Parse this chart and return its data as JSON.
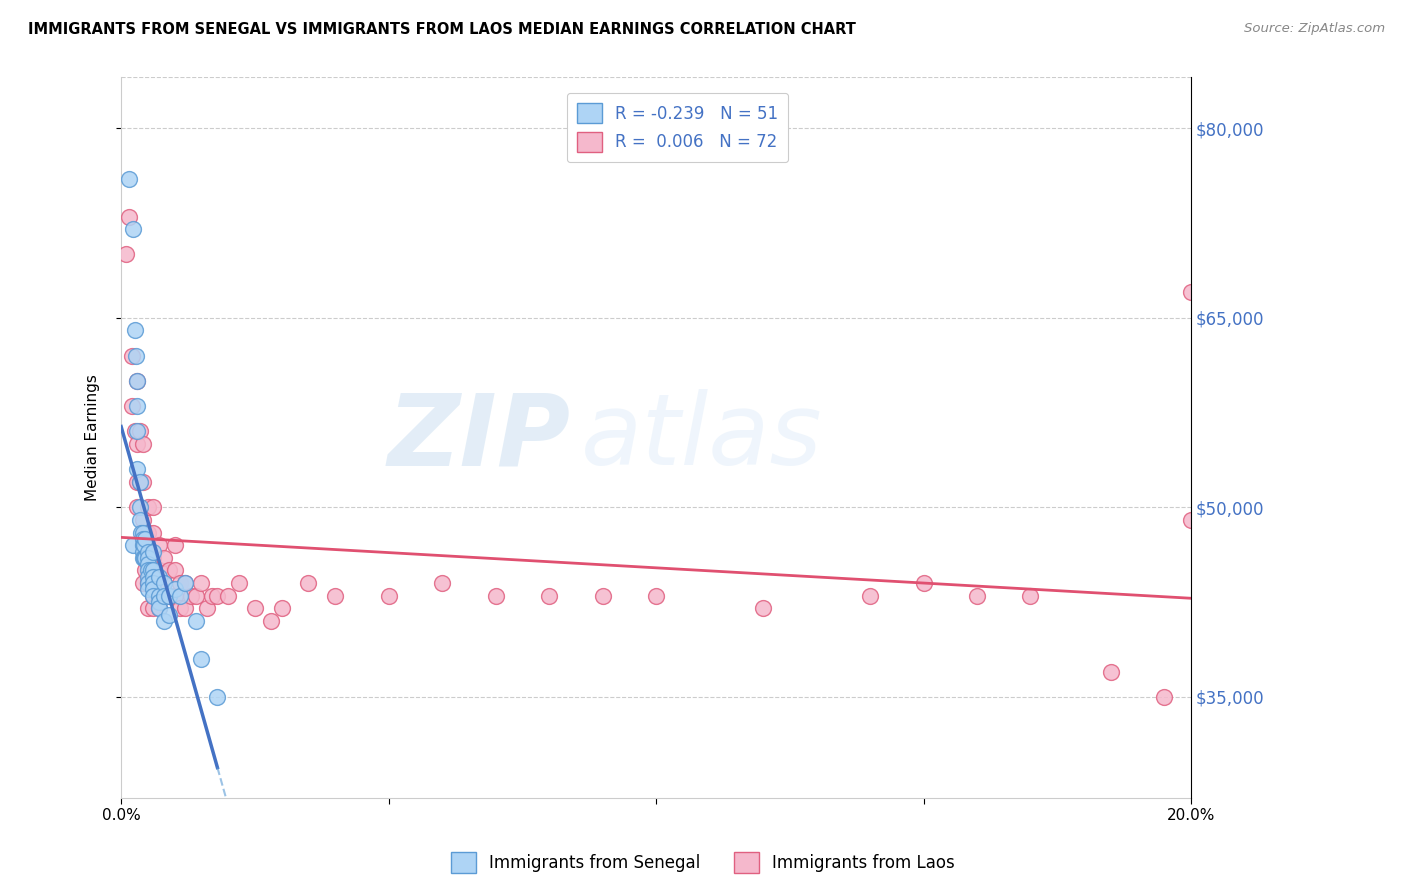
{
  "title": "IMMIGRANTS FROM SENEGAL VS IMMIGRANTS FROM LAOS MEDIAN EARNINGS CORRELATION CHART",
  "source": "Source: ZipAtlas.com",
  "ylabel": "Median Earnings",
  "xlim": [
    0.0,
    0.2
  ],
  "ylim": [
    27000,
    84000
  ],
  "yticks": [
    35000,
    50000,
    65000,
    80000
  ],
  "ytick_labels": [
    "$35,000",
    "$50,000",
    "$65,000",
    "$80,000"
  ],
  "xticks": [
    0.0,
    0.05,
    0.1,
    0.15,
    0.2
  ],
  "xtick_labels": [
    "0.0%",
    "",
    "",
    "",
    "20.0%"
  ],
  "senegal_color": "#aed4f5",
  "laos_color": "#f5b8cc",
  "senegal_edge_color": "#5b9bd5",
  "laos_edge_color": "#e06080",
  "senegal_line_color": "#4472c4",
  "laos_line_color": "#e05070",
  "label_color": "#4472c4",
  "legend_senegal_label": "R = -0.239   N = 51",
  "legend_laos_label": "R =  0.006   N = 72",
  "watermark": "ZIPatlas",
  "senegal_points_x": [
    0.0015,
    0.0022,
    0.0022,
    0.0025,
    0.0028,
    0.003,
    0.003,
    0.003,
    0.003,
    0.0035,
    0.0035,
    0.0035,
    0.0038,
    0.004,
    0.004,
    0.004,
    0.004,
    0.004,
    0.0042,
    0.0042,
    0.0045,
    0.0045,
    0.005,
    0.005,
    0.005,
    0.005,
    0.005,
    0.005,
    0.005,
    0.0055,
    0.006,
    0.006,
    0.006,
    0.006,
    0.006,
    0.006,
    0.007,
    0.007,
    0.007,
    0.007,
    0.008,
    0.008,
    0.008,
    0.009,
    0.009,
    0.01,
    0.011,
    0.012,
    0.014,
    0.015,
    0.018
  ],
  "senegal_points_y": [
    76000,
    72000,
    47000,
    64000,
    62000,
    60000,
    58000,
    56000,
    53000,
    52000,
    50000,
    49000,
    48000,
    48000,
    47500,
    47000,
    46500,
    46000,
    47000,
    46000,
    47500,
    46000,
    46500,
    46000,
    45500,
    45000,
    44500,
    44000,
    43500,
    45000,
    46500,
    45000,
    44500,
    44000,
    43500,
    43000,
    44500,
    43000,
    42500,
    42000,
    44000,
    43000,
    41000,
    43000,
    41500,
    43500,
    43000,
    44000,
    41000,
    38000,
    35000
  ],
  "laos_points_x": [
    0.001,
    0.0015,
    0.002,
    0.002,
    0.0025,
    0.003,
    0.003,
    0.003,
    0.003,
    0.0035,
    0.0035,
    0.004,
    0.004,
    0.004,
    0.004,
    0.004,
    0.0045,
    0.0045,
    0.005,
    0.005,
    0.005,
    0.005,
    0.005,
    0.006,
    0.006,
    0.006,
    0.006,
    0.006,
    0.006,
    0.007,
    0.007,
    0.007,
    0.007,
    0.008,
    0.008,
    0.009,
    0.009,
    0.01,
    0.01,
    0.01,
    0.011,
    0.011,
    0.012,
    0.012,
    0.013,
    0.014,
    0.015,
    0.016,
    0.017,
    0.018,
    0.02,
    0.022,
    0.025,
    0.028,
    0.03,
    0.035,
    0.04,
    0.05,
    0.06,
    0.07,
    0.08,
    0.09,
    0.1,
    0.12,
    0.14,
    0.15,
    0.16,
    0.17,
    0.185,
    0.195,
    0.2,
    0.2
  ],
  "laos_points_y": [
    70000,
    73000,
    62000,
    58000,
    56000,
    60000,
    55000,
    52000,
    50000,
    56000,
    52000,
    55000,
    52000,
    49000,
    47000,
    44000,
    48000,
    45000,
    50000,
    48000,
    46000,
    44000,
    42000,
    50000,
    48000,
    46000,
    44000,
    43000,
    42000,
    47000,
    45000,
    43000,
    42000,
    46000,
    44000,
    45000,
    43000,
    47000,
    45000,
    43000,
    44000,
    42000,
    44000,
    42000,
    43000,
    43000,
    44000,
    42000,
    43000,
    43000,
    43000,
    44000,
    42000,
    41000,
    42000,
    44000,
    43000,
    43000,
    44000,
    43000,
    43000,
    43000,
    43000,
    42000,
    43000,
    44000,
    43000,
    43000,
    37000,
    35000,
    49000,
    67000
  ]
}
